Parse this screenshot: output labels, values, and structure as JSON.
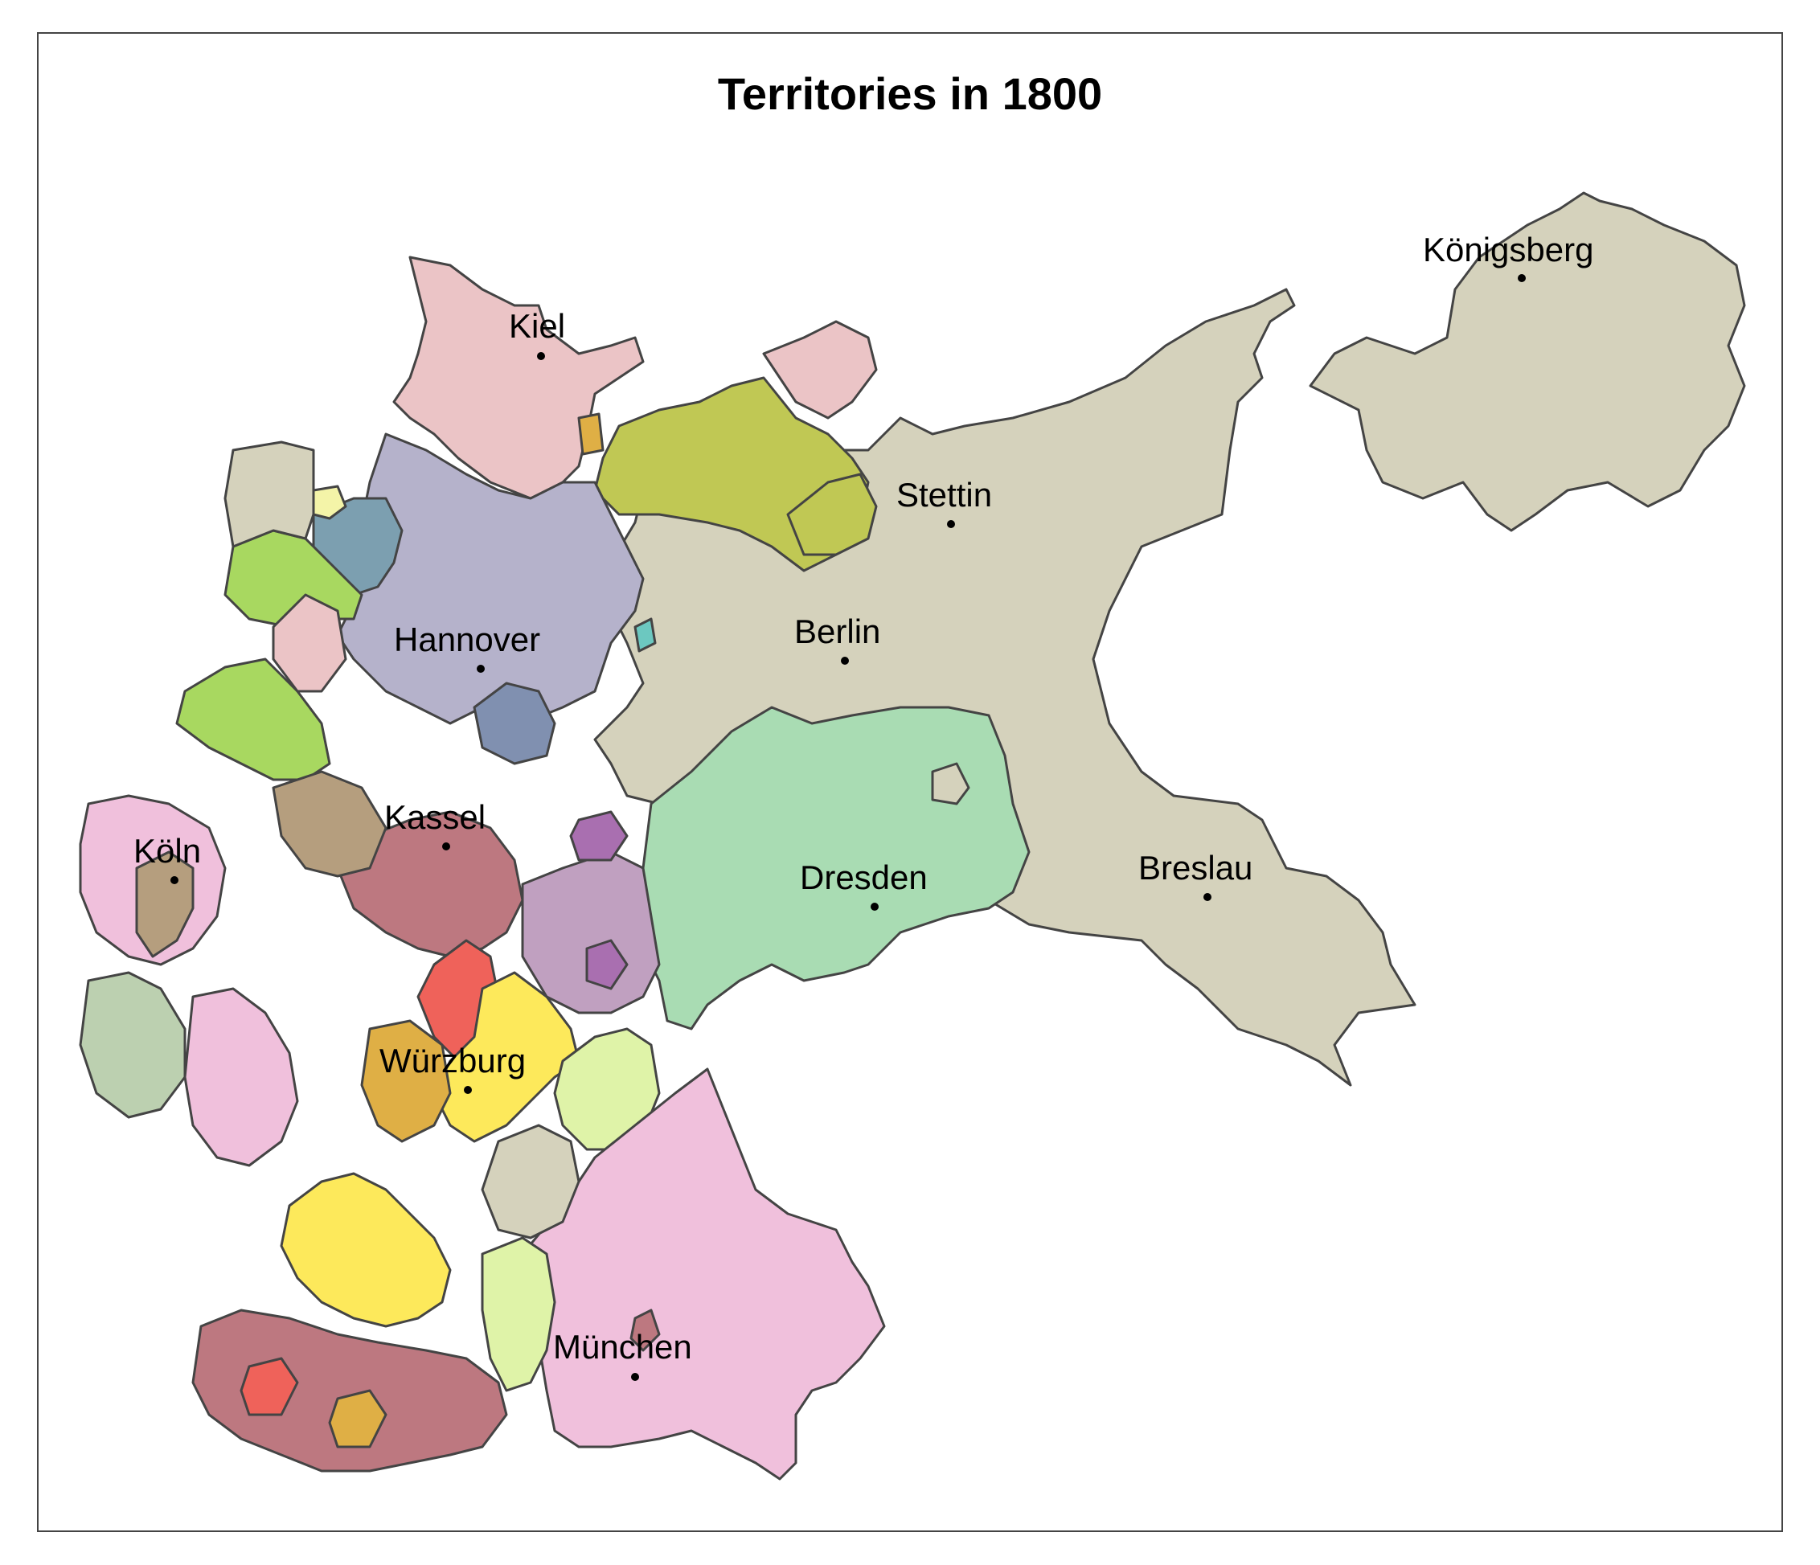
{
  "map": {
    "title": "Territories in 1800",
    "border_color": "#444444",
    "cities": [
      {
        "name": "Königsberg",
        "dot": "city-dot-konigsberg"
      },
      {
        "name": "Kiel"
      },
      {
        "name": "Stettin"
      },
      {
        "name": "Berlin"
      },
      {
        "name": "Hannover"
      },
      {
        "name": "Kassel"
      },
      {
        "name": "Köln"
      },
      {
        "name": "Dresden"
      },
      {
        "name": "Breslau"
      },
      {
        "name": "Würzburg"
      },
      {
        "name": "München"
      }
    ],
    "territory_colors": {
      "prussia": "#d5d2bc",
      "holstein": "#ebc4c6",
      "hannover": "#b5b2cb",
      "mecklenburg": "#c0c854",
      "saxony": "#a9dcb3",
      "bavaria": "#f0c0dc",
      "westphalia_green": "#a8d860",
      "oldenburg_blue": "#7c9fb0",
      "hesse_kassel": "#bd7880",
      "wurzburg_yellow": "#fde95b",
      "red": "#ef625a",
      "mustard": "#dfaf45",
      "brown": "#b59e7e",
      "pale_yellow": "#f4f4a8",
      "lime": "#dff3a8",
      "purple": "#a96fb0",
      "slate": "#8090b0",
      "teal": "#6cc8c0",
      "mauve": "#c0a0c0",
      "sage": "#bcd0b0"
    }
  }
}
